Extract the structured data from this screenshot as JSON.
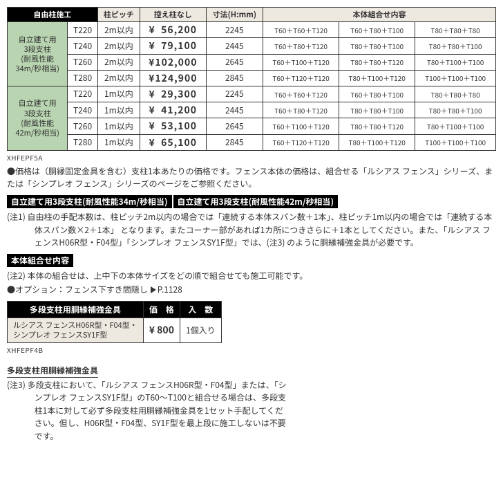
{
  "mainTable": {
    "headers": {
      "c1": "自由柱施工",
      "c2": "柱ピッチ",
      "c3": "控え柱なし",
      "c4": "寸法(H:mm)",
      "c5": "本体組合せ内容"
    },
    "groups": [
      {
        "label": "自立建て用\n3段支柱\n(耐風性能\n34m/秒相当)",
        "rows": [
          {
            "model": "T220",
            "pitch": "2m以内",
            "price": "¥  56,200",
            "h": "2245",
            "combo": [
              "T60＋T60＋T120",
              "T60＋T80＋T100",
              "T80＋T80＋T80"
            ]
          },
          {
            "model": "T240",
            "pitch": "2m以内",
            "price": "¥  79,100",
            "h": "2445",
            "combo": [
              "T60＋T80＋T120",
              "T80＋T80＋T100",
              "T80＋T80＋T100"
            ]
          },
          {
            "model": "T260",
            "pitch": "2m以内",
            "price": "¥102,000",
            "h": "2645",
            "combo": [
              "T60＋T100＋T120",
              "T80＋T80＋T120",
              "T80＋T100＋T100"
            ]
          },
          {
            "model": "T280",
            "pitch": "2m以内",
            "price": "¥124,900",
            "h": "2845",
            "combo": [
              "T60＋T120＋T120",
              "T80＋T100＋T120",
              "T100＋T100＋T100"
            ]
          }
        ]
      },
      {
        "label": "自立建て用\n3段支柱\n(耐風性能\n42m/秒相当)",
        "rows": [
          {
            "model": "T220",
            "pitch": "1m以内",
            "price": "¥  29,300",
            "h": "2245",
            "combo": [
              "T60＋T60＋T120",
              "T60＋T80＋T100",
              "T80＋T80＋T80"
            ]
          },
          {
            "model": "T240",
            "pitch": "1m以内",
            "price": "¥  41,200",
            "h": "2445",
            "combo": [
              "T60＋T80＋T120",
              "T80＋T80＋T100",
              "T80＋T80＋T100"
            ]
          },
          {
            "model": "T260",
            "pitch": "1m以内",
            "price": "¥  53,100",
            "h": "2645",
            "combo": [
              "T60＋T100＋T120",
              "T80＋T80＋T120",
              "T80＋T100＋T100"
            ]
          },
          {
            "model": "T280",
            "pitch": "1m以内",
            "price": "¥  65,100",
            "h": "2845",
            "combo": [
              "T60＋T120＋T120",
              "T80＋T100＋T120",
              "T100＋T100＋T100"
            ]
          }
        ]
      }
    ]
  },
  "code1": "XHFEPF5A",
  "para1": "●価格は（胴縁固定金具を含む）支柱1本あたりの価格です。フェンス本体の価格は、組合せる「ルシアス フェンス」シリーズ、または「シンプレオ フェンス」シリーズのページをご参照ください。",
  "tag1": "自立建て用3段支柱(耐風性能34m/秒相当)",
  "tag2": "自立建て用3段支柱(耐風性能42m/秒相当)",
  "note1": "(注1) 自由柱の手配本数は、柱ピッチ2m以内の場合では「連続する本体スパン数＋1本」、柱ピッチ1m以内の場合では「連続する本体スパン数×2＋1本」 となります。またコーナー部があれば1カ所につきさらに＋1本としてください。また、「ルシアス フェンスH06R型・F04型」「シンプレオ フェンスSY1F型」では、(注3) のように胴縁補強金具が必要です。",
  "tag3": "本体組合せ内容",
  "note2": "(注2) 本体の組合せは、上中下の本体サイズをどの順で組合せても施工可能です。",
  "option": "●オプション：フェンス下すき間隠し",
  "optionPage": "P.1128",
  "smallTable": {
    "h1": "多段支柱用胴縁補強金具",
    "h2": "価　格",
    "h3": "入　数",
    "rowlabel": "ルシアス フェンスH06R型・F04型・\nシンプレオ フェンスSY1F型",
    "price": "¥  800",
    "qty": "1個入り"
  },
  "code2": "XHFEPF4B",
  "sect3": "多段支柱用胴縁補強金具",
  "note3": "(注3) 多段支柱において、「ルシアス フェンスH06R型・F04型」または、「シンプレオ フェンスSY1F型」のT60～T100と組合せる場合は、多段支柱1本に対して必ず多段支柱用胴縁補強金具を1セット手配してください。但し、H06R型・F04型、SY1F型を最上段に施工しないは不要です。"
}
